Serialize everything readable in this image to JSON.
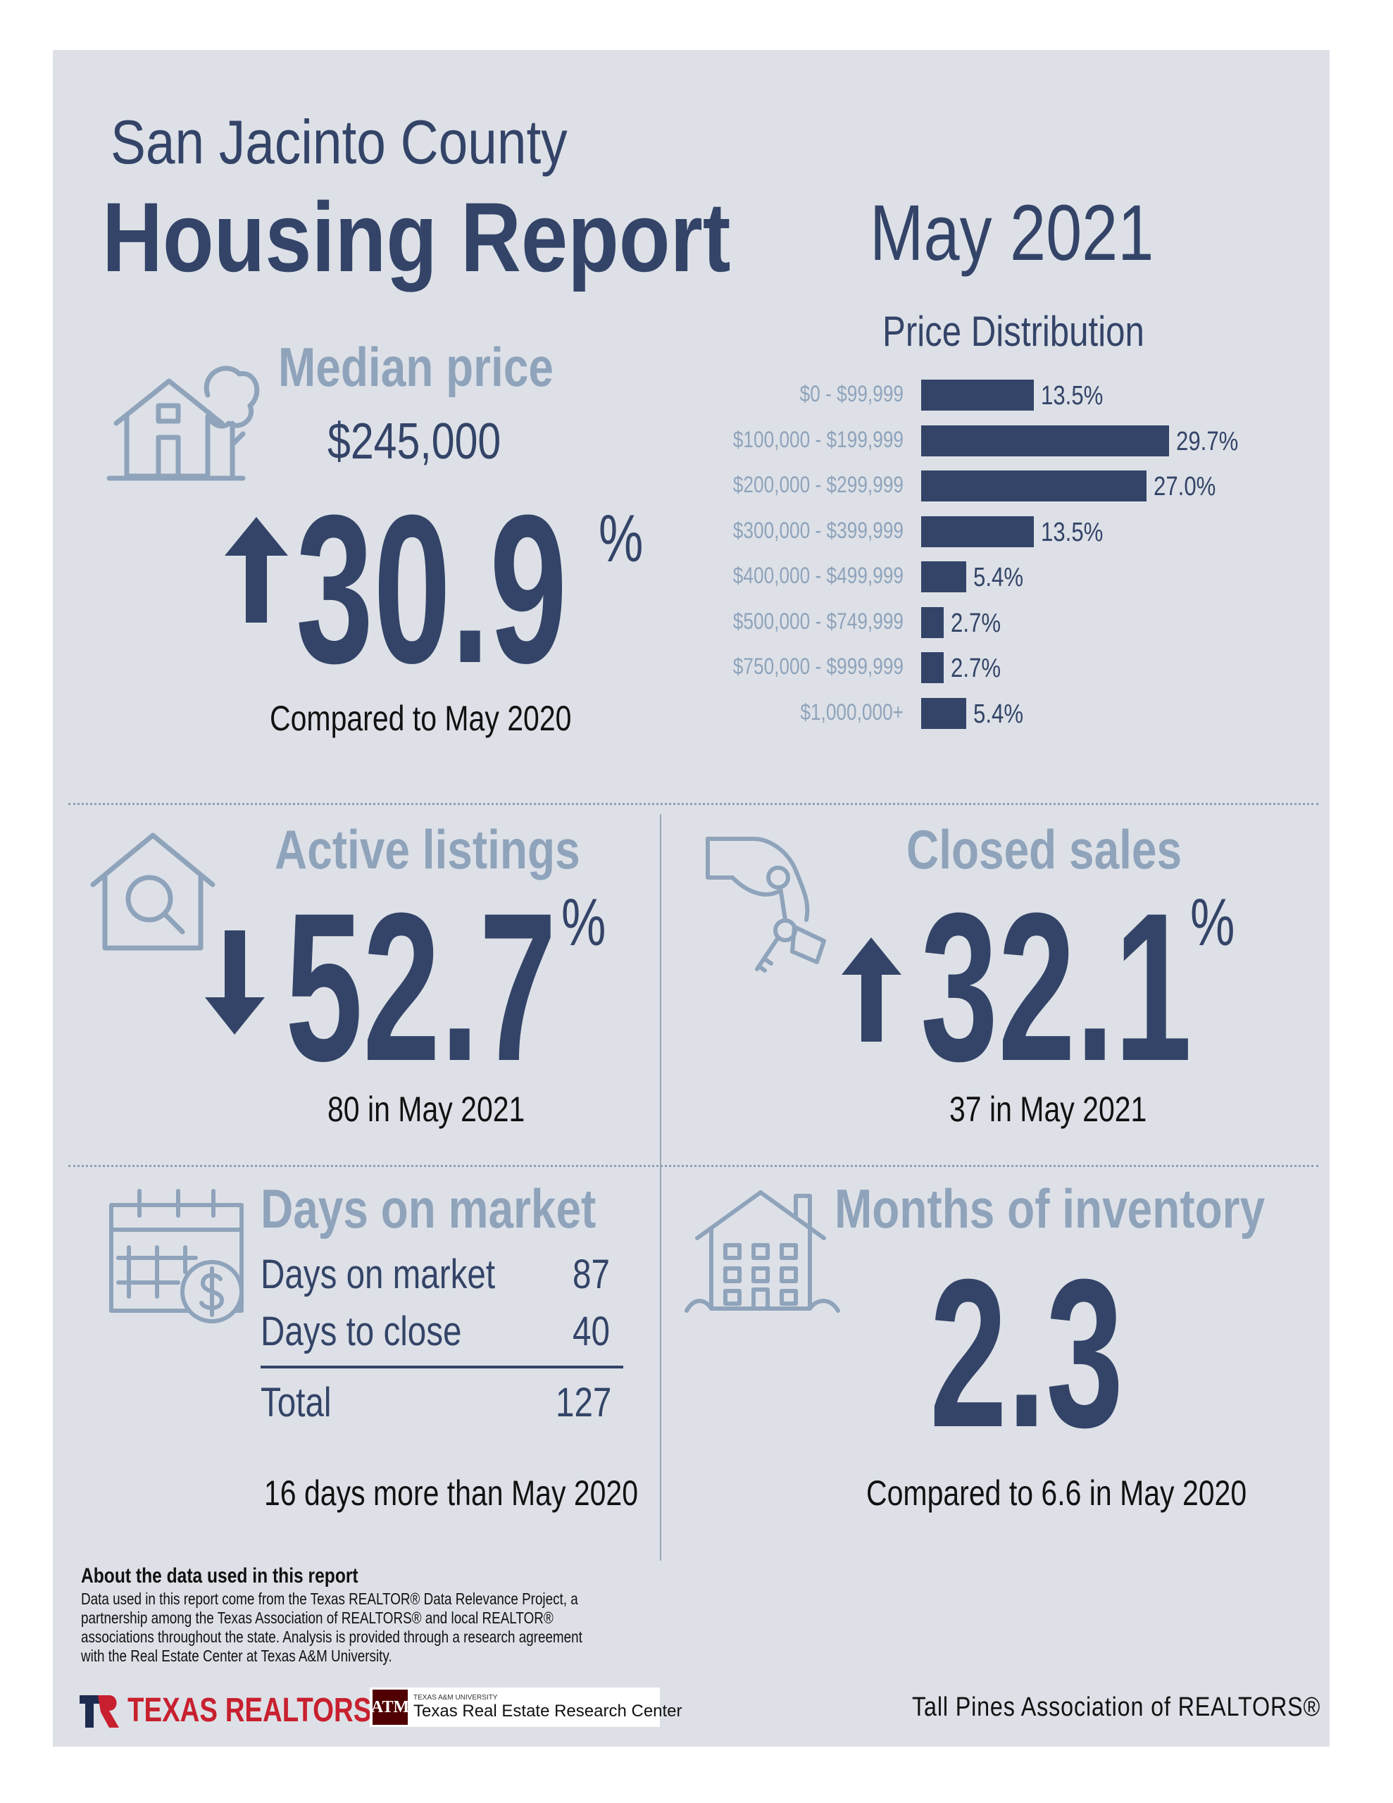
{
  "header": {
    "county": "San Jacinto County",
    "title": "Housing Report",
    "month": "May 2021"
  },
  "median_price": {
    "heading": "Median price",
    "value": "$245,000",
    "change": "30.9",
    "percent_sign": "%",
    "direction": "up",
    "caption": "Compared to May 2020"
  },
  "chart_data": {
    "type": "bar",
    "orientation": "horizontal",
    "title": "Price Distribution",
    "categories": [
      "$0 - $99,999",
      "$100,000 - $199,999",
      "$200,000 - $299,999",
      "$300,000 - $399,999",
      "$400,000 - $499,999",
      "$500,000 - $749,999",
      "$750,000 - $999,999",
      "$1,000,000+"
    ],
    "values": [
      13.5,
      29.7,
      27.0,
      13.5,
      5.4,
      2.7,
      2.7,
      5.4
    ],
    "labels": [
      "13.5%",
      "29.7%",
      "27.0%",
      "13.5%",
      "5.4%",
      "2.7%",
      "2.7%",
      "5.4%"
    ],
    "unit": "%",
    "bar_color": "#344468",
    "grid": false,
    "legend": "none"
  },
  "active_listings": {
    "heading": "Active listings",
    "change": "52.7",
    "percent_sign": "%",
    "direction": "down",
    "caption": "80 in May 2021"
  },
  "closed_sales": {
    "heading": "Closed sales",
    "change": "32.1",
    "percent_sign": "%",
    "direction": "up",
    "caption": "37 in May 2021"
  },
  "days_on_market": {
    "heading": "Days on market",
    "rows": [
      {
        "label": "Days on market",
        "value": "87"
      },
      {
        "label": "Days to close",
        "value": "40"
      }
    ],
    "total_label": "Total",
    "total_value": "127",
    "caption": "16 days more than May 2020"
  },
  "months_of_inventory": {
    "heading": "Months of inventory",
    "value": "2.3",
    "caption": "Compared to 6.6 in May 2020"
  },
  "footer": {
    "about_heading": "About the data used in this report",
    "about_lines": [
      "Data used in this report come from the Texas REALTOR® Data Relevance Project, a",
      "partnership among the Texas Association of REALTORS® and local REALTOR®",
      "associations throughout the state. Analysis is provided through a research agreement",
      "with the Real Estate Center at Texas A&M University."
    ],
    "texas_realtors": "TEXAS REALTORS",
    "tamu_small": "TEXAS A&M UNIVERSITY",
    "tamu_center": "Texas Real Estate Research Center",
    "association": "Tall Pines Association of REALTORS®"
  },
  "colors": {
    "navy": "#344468",
    "light_blue_gray": "#8fa3bb",
    "panel_background": "#dde1e7",
    "texas_realtors_red": "#c8202f"
  }
}
